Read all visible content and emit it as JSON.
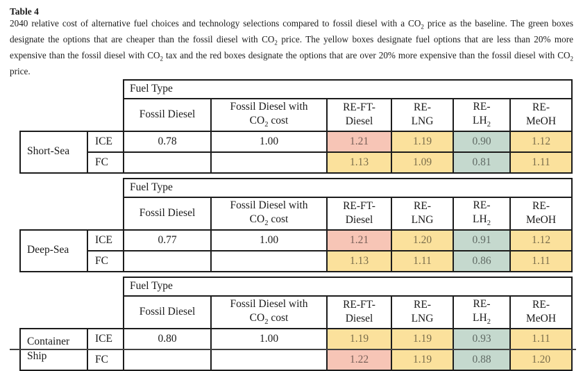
{
  "caption": {
    "label": "Table 4",
    "text": "2040 relative cost of alternative fuel choices and technology selections compared to fossil diesel with a CO~2~ price as the baseline. The green boxes designate the options that are cheaper than the fossil diesel with CO~2~ price. The yellow boxes designate fuel options that are less than 20% more expensive than the fossil diesel with CO~2~ tax and the red boxes designate the options that are over 20% more expensive than the fossil diesel with CO~2~ price."
  },
  "legend_colors": {
    "green_cheaper": "#c5d9ce",
    "yellow_under_20pct": "#fbe19c",
    "red_over_20pct": "#f7c5b6"
  },
  "table": {
    "fuel_type_label": "Fuel Type",
    "columns": [
      "Fossil Diesel",
      "Fossil Diesel with\nCO~2~ cost",
      "RE-FT-\nDiesel",
      "RE-\nLNG",
      "RE-\nLH~2~",
      "RE-\nMeOH"
    ],
    "blocks": [
      {
        "ship": "Short-Sea",
        "rows": [
          {
            "tech": "ICE",
            "values": [
              {
                "v": "0.78",
                "bg": "#ffffff"
              },
              {
                "v": "1.00",
                "bg": "#ffffff"
              },
              {
                "v": "1.21",
                "bg": "#f7c5b6"
              },
              {
                "v": "1.19",
                "bg": "#fbe19c"
              },
              {
                "v": "0.90",
                "bg": "#c5d9ce"
              },
              {
                "v": "1.12",
                "bg": "#fbe19c"
              }
            ]
          },
          {
            "tech": "FC",
            "values": [
              {
                "v": "",
                "bg": "#ffffff"
              },
              {
                "v": "",
                "bg": "#ffffff"
              },
              {
                "v": "1.13",
                "bg": "#fbe19c"
              },
              {
                "v": "1.09",
                "bg": "#fbe19c"
              },
              {
                "v": "0.81",
                "bg": "#c5d9ce"
              },
              {
                "v": "1.11",
                "bg": "#fbe19c"
              }
            ]
          }
        ]
      },
      {
        "ship": "Deep-Sea",
        "rows": [
          {
            "tech": "ICE",
            "values": [
              {
                "v": "0.77",
                "bg": "#ffffff"
              },
              {
                "v": "1.00",
                "bg": "#ffffff"
              },
              {
                "v": "1.21",
                "bg": "#f7c5b6"
              },
              {
                "v": "1.20",
                "bg": "#fbe19c"
              },
              {
                "v": "0.91",
                "bg": "#c5d9ce"
              },
              {
                "v": "1.12",
                "bg": "#fbe19c"
              }
            ]
          },
          {
            "tech": "FC",
            "values": [
              {
                "v": "",
                "bg": "#ffffff"
              },
              {
                "v": "",
                "bg": "#ffffff"
              },
              {
                "v": "1.13",
                "bg": "#fbe19c"
              },
              {
                "v": "1.11",
                "bg": "#fbe19c"
              },
              {
                "v": "0.86",
                "bg": "#c5d9ce"
              },
              {
                "v": "1.11",
                "bg": "#fbe19c"
              }
            ]
          }
        ]
      },
      {
        "ship": "Container Ship",
        "rows": [
          {
            "tech": "ICE",
            "values": [
              {
                "v": "0.80",
                "bg": "#ffffff"
              },
              {
                "v": "1.00",
                "bg": "#ffffff"
              },
              {
                "v": "1.19",
                "bg": "#fbe19c"
              },
              {
                "v": "1.19",
                "bg": "#fbe19c"
              },
              {
                "v": "0.93",
                "bg": "#c5d9ce"
              },
              {
                "v": "1.11",
                "bg": "#fbe19c"
              }
            ]
          },
          {
            "tech": "FC",
            "values": [
              {
                "v": "",
                "bg": "#ffffff"
              },
              {
                "v": "",
                "bg": "#ffffff"
              },
              {
                "v": "1.22",
                "bg": "#f7c5b6"
              },
              {
                "v": "1.19",
                "bg": "#fbe19c"
              },
              {
                "v": "0.88",
                "bg": "#c5d9ce"
              },
              {
                "v": "1.20",
                "bg": "#fbe19c"
              }
            ]
          }
        ]
      }
    ]
  }
}
